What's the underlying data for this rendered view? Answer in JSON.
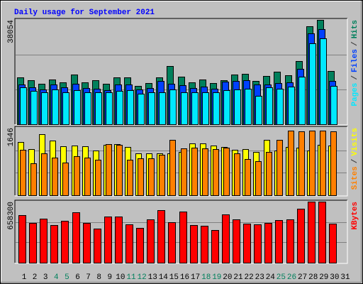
{
  "chart_data": {
    "type": "bar",
    "title": "Daily usage for September 2021",
    "categories": [
      "1",
      "2",
      "3",
      "4",
      "5",
      "6",
      "7",
      "8",
      "9",
      "10",
      "11",
      "12",
      "13",
      "14",
      "15",
      "16",
      "17",
      "18",
      "19",
      "20",
      "21",
      "22",
      "23",
      "24",
      "25",
      "26",
      "27",
      "28",
      "29",
      "30",
      "31"
    ],
    "category_colors": [
      "#000000",
      "#000000",
      "#000000",
      "#00805c",
      "#00805c",
      "#000000",
      "#000000",
      "#000000",
      "#000000",
      "#000000",
      "#00805c",
      "#00805c",
      "#000000",
      "#000000",
      "#000000",
      "#000000",
      "#000000",
      "#00805c",
      "#00805c",
      "#000000",
      "#000000",
      "#000000",
      "#000000",
      "#000000",
      "#00805c",
      "#00805c",
      "#000000",
      "#000000",
      "#000000",
      "#000000",
      "#000000"
    ],
    "legend_separator": "/",
    "panels": [
      {
        "ylim": [
          0,
          38054
        ],
        "yticks": [
          38054
        ],
        "grid": true,
        "series": [
          {
            "name": "Hits",
            "color": "#00805c",
            "values": [
              17100,
              16060,
              14760,
              16320,
              15280,
              18130,
              15280,
              16060,
              14760,
              17090,
              17090,
              13990,
              15020,
              17090,
              21240,
              17350,
              15280,
              16320,
              15020,
              16060,
              18130,
              18390,
              15800,
              17610,
              19170,
              17870,
              23050,
              35740,
              38054,
              19430,
              null
            ]
          },
          {
            "name": "Files",
            "color": "#0040ff",
            "values": [
              14500,
              13470,
              12690,
              14500,
              13470,
              14760,
              13210,
              12950,
              12430,
              14500,
              14500,
              12690,
              13210,
              15800,
              14760,
              14250,
              13210,
              13730,
              12950,
              15540,
              15800,
              16060,
              14500,
              14500,
              15020,
              15280,
              20200,
              33150,
              34710,
              15800,
              null
            ]
          },
          {
            "name": "Pages",
            "color": "#00e8ff",
            "values": [
              13470,
              12170,
              11660,
              12690,
              11660,
              12430,
              11660,
              11660,
              11660,
              12170,
              12430,
              11140,
              11660,
              11660,
              12690,
              11660,
              11660,
              11660,
              11660,
              12430,
              12690,
              12950,
              10360,
              13470,
              12950,
              13730,
              17350,
              29530,
              31340,
              13990,
              null
            ]
          }
        ]
      },
      {
        "ylim": [
          0,
          1646
        ],
        "yticks": [
          1646
        ],
        "grid": true,
        "series": [
          {
            "name": "Visits",
            "color": "#ffff00",
            "values": [
              1298,
              1125,
              1488,
              1332,
              1194,
              1211,
              1194,
              1090,
              1228,
              1246,
              1176,
              1021,
              1021,
              1021,
              1021,
              1055,
              1263,
              1263,
              1211,
              1176,
              1107,
              1125,
              1055,
              1349,
              1090,
              1176,
              1159,
              1090,
              1228,
              1211,
              null
            ]
          },
          {
            "name": "Sites",
            "color": "#ff8000",
            "values": [
              1107,
              779,
              1021,
              917,
              796,
              952,
              917,
              865,
              1246,
              1228,
              865,
              900,
              900,
              986,
              1349,
              1142,
              1159,
              1142,
              1125,
              1159,
              1021,
              882,
              830,
              1055,
              1349,
              1574,
              1557,
              1574,
              1574,
              1557,
              null
            ]
          }
        ]
      },
      {
        "ylim": [
          0,
          658300
        ],
        "yticks": [
          658300
        ],
        "grid": true,
        "series": [
          {
            "name": "KBytes",
            "color": "#ff0000",
            "values": [
              512900,
              428700,
              474600,
              405700,
              451600,
              543500,
              428700,
              367400,
              497600,
              497600,
              413400,
              375100,
              467000,
              566500,
              436300,
              551200,
              405700,
              398100,
              352100,
              520500,
              467000,
              421000,
              413400,
              428700,
              459300,
              467000,
              581800,
              655000,
              658300,
              421000,
              null
            ]
          }
        ]
      }
    ]
  }
}
